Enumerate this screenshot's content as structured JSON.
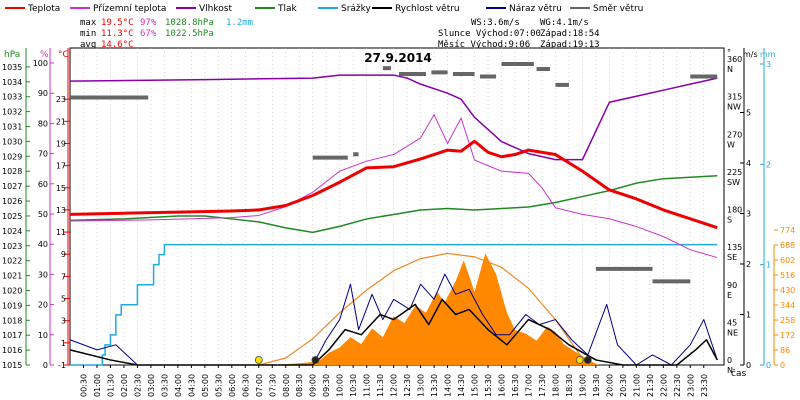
{
  "chart_data": {
    "type": "line",
    "title": "27.9.2014",
    "legend": [
      {
        "name": "Teplota",
        "color": "#ee0000"
      },
      {
        "name": "Přízemní teplota",
        "color": "#cc33cc"
      },
      {
        "name": "Vlhkost",
        "color": "#8800aa"
      },
      {
        "name": "Tlak",
        "color": "#228822"
      },
      {
        "name": "Srážky",
        "color": "#22aadd"
      },
      {
        "name": "Rychlost větru",
        "color": "#000000"
      },
      {
        "name": "Náraz větru",
        "color": "#000088"
      },
      {
        "name": "Směr větru",
        "color": "#666666"
      }
    ],
    "stats": {
      "max": {
        "label": "max",
        "temp": "19.5°C",
        "hum": "97%",
        "press": "1028.8hPa",
        "rain": "1.2mm"
      },
      "min": {
        "label": "min",
        "temp": "11.3°C",
        "hum": "67%",
        "press": "1022.5hPa"
      },
      "avg": {
        "label": "avg",
        "temp": "14.6°C"
      }
    },
    "info": {
      "ws": "WS:3.6m/s",
      "wg": "WG:4.1m/s",
      "sun": "Slunce Východ:07:00",
      "sun_set": "Západ:18:54",
      "moon": "Měsíc  Východ:9:06",
      "moon_set": "Západ:19:13"
    },
    "axes": {
      "hpa": {
        "label": "hPa",
        "color": "#228822",
        "range": [
          1015,
          1036
        ],
        "ticks": [
          1015,
          1016,
          1017,
          1018,
          1019,
          1020,
          1021,
          1022,
          1023,
          1024,
          1025,
          1026,
          1027,
          1028,
          1029,
          1030,
          1031,
          1032,
          1033,
          1034,
          1035
        ]
      },
      "pct": {
        "label": "%",
        "color": "#cc33cc",
        "range": [
          0,
          100
        ],
        "ticks": [
          0,
          10,
          20,
          30,
          40,
          50,
          60,
          70,
          80,
          90,
          100
        ]
      },
      "temp": {
        "label": "°C",
        "color": "#ee0000",
        "range": [
          -1,
          25
        ],
        "ticks": [
          -1,
          1,
          3,
          5,
          7,
          9,
          11,
          13,
          15,
          17,
          19,
          21,
          23
        ]
      },
      "dir": {
        "label": "°",
        "range": [
          0,
          360
        ],
        "ticks": [
          {
            "deg": 0,
            "n": "0",
            "c": "N"
          },
          {
            "deg": 45,
            "n": "45",
            "c": "NE"
          },
          {
            "deg": 90,
            "n": "90",
            "c": "E"
          },
          {
            "deg": 135,
            "n": "135",
            "c": "SE"
          },
          {
            "deg": 180,
            "n": "180",
            "c": "S"
          },
          {
            "deg": 225,
            "n": "225",
            "c": "SW"
          },
          {
            "deg": 270,
            "n": "270",
            "c": "W"
          },
          {
            "deg": 315,
            "n": "315",
            "c": "NW"
          },
          {
            "deg": 360,
            "n": "360",
            "c": "N"
          }
        ]
      },
      "ms": {
        "label": "m/s",
        "range": [
          0,
          3
        ],
        "ticks": [
          0,
          1,
          2,
          3,
          4,
          5
        ]
      },
      "mm": {
        "label": "mm",
        "color": "#22aadd",
        "range": [
          0,
          3
        ],
        "ticks": [
          0,
          1,
          2,
          3
        ]
      },
      "wm2": {
        "color": "#ff8800",
        "range": [
          0,
          860
        ],
        "ticks": [
          0,
          86,
          172,
          258,
          344,
          430,
          516,
          602,
          688,
          774
        ]
      },
      "time": {
        "label": "čas",
        "ticks": [
          "00:30",
          "01:00",
          "01:30",
          "02:00",
          "02:30",
          "03:00",
          "03:30",
          "04:00",
          "04:30",
          "05:00",
          "05:30",
          "06:00",
          "06:30",
          "07:00",
          "07:30",
          "08:00",
          "08:30",
          "09:00",
          "09:30",
          "10:00",
          "10:30",
          "11:00",
          "11:30",
          "12:00",
          "12:30",
          "13:00",
          "13:30",
          "14:00",
          "14:30",
          "15:00",
          "15:30",
          "16:00",
          "16:30",
          "17:00",
          "17:30",
          "18:00",
          "18:30",
          "19:00",
          "19:30",
          "20:00",
          "20:30",
          "21:00",
          "21:30",
          "22:00",
          "22:30",
          "23:00",
          "23:30"
        ]
      }
    },
    "series": {
      "temperature": {
        "unit": "°C",
        "points": [
          [
            0,
            12.6
          ],
          [
            2,
            12.7
          ],
          [
            4,
            12.8
          ],
          [
            6,
            12.9
          ],
          [
            7,
            13.0
          ],
          [
            8,
            13.4
          ],
          [
            9,
            14.3
          ],
          [
            10,
            15.5
          ],
          [
            11,
            16.8
          ],
          [
            12,
            16.9
          ],
          [
            13,
            17.6
          ],
          [
            13.5,
            18.0
          ],
          [
            14,
            18.4
          ],
          [
            14.5,
            18.3
          ],
          [
            15,
            19.2
          ],
          [
            15.5,
            18.2
          ],
          [
            16,
            17.8
          ],
          [
            16.5,
            18.0
          ],
          [
            17,
            18.4
          ],
          [
            18,
            18.0
          ],
          [
            19,
            16.5
          ],
          [
            20,
            14.8
          ],
          [
            21,
            14.0
          ],
          [
            22,
            13.0
          ],
          [
            23,
            12.2
          ],
          [
            24,
            11.4
          ]
        ]
      },
      "ground_temp": {
        "unit": "°C",
        "points": [
          [
            0,
            12.0
          ],
          [
            3,
            12.1
          ],
          [
            6,
            12.3
          ],
          [
            7,
            12.5
          ],
          [
            8,
            13.3
          ],
          [
            9,
            14.6
          ],
          [
            10,
            16.5
          ],
          [
            11,
            17.4
          ],
          [
            12,
            18.0
          ],
          [
            13,
            19.5
          ],
          [
            13.5,
            21.6
          ],
          [
            14,
            19.0
          ],
          [
            14.5,
            21.3
          ],
          [
            15,
            17.5
          ],
          [
            15.5,
            17.0
          ],
          [
            16,
            16.5
          ],
          [
            17,
            16.3
          ],
          [
            17.5,
            15.0
          ],
          [
            18,
            13.2
          ],
          [
            19,
            12.6
          ],
          [
            20,
            12.2
          ],
          [
            21,
            11.5
          ],
          [
            22,
            10.6
          ],
          [
            23,
            9.4
          ],
          [
            24,
            8.7
          ]
        ]
      },
      "humidity": {
        "unit": "%",
        "points": [
          [
            0,
            94
          ],
          [
            5,
            94.5
          ],
          [
            9,
            95
          ],
          [
            10,
            96
          ],
          [
            12,
            96
          ],
          [
            12.5,
            95
          ],
          [
            13,
            93
          ],
          [
            14,
            90
          ],
          [
            14.5,
            88
          ],
          [
            15,
            82
          ],
          [
            15.5,
            78
          ],
          [
            16,
            74
          ],
          [
            17,
            70
          ],
          [
            18,
            68
          ],
          [
            19,
            68
          ],
          [
            20,
            87
          ],
          [
            21,
            89
          ],
          [
            22,
            91
          ],
          [
            23,
            93
          ],
          [
            24,
            95
          ]
        ]
      },
      "pressure": {
        "unit": "hPa",
        "points": [
          [
            0,
            1024.7
          ],
          [
            2,
            1024.8
          ],
          [
            4,
            1025.0
          ],
          [
            5,
            1025.0
          ],
          [
            6,
            1024.8
          ],
          [
            7,
            1024.6
          ],
          [
            8,
            1024.2
          ],
          [
            9,
            1023.9
          ],
          [
            10,
            1024.3
          ],
          [
            11,
            1024.8
          ],
          [
            12,
            1025.1
          ],
          [
            13,
            1025.4
          ],
          [
            14,
            1025.5
          ],
          [
            15,
            1025.4
          ],
          [
            16,
            1025.5
          ],
          [
            17,
            1025.6
          ],
          [
            18,
            1025.9
          ],
          [
            19,
            1026.3
          ],
          [
            20,
            1026.7
          ],
          [
            21,
            1027.2
          ],
          [
            22,
            1027.5
          ],
          [
            23,
            1027.6
          ],
          [
            24,
            1027.7
          ]
        ]
      },
      "rain": {
        "unit": "mm",
        "points": [
          [
            0,
            0
          ],
          [
            1.0,
            0
          ],
          [
            1.2,
            0.1
          ],
          [
            1.3,
            0.2
          ],
          [
            1.5,
            0.3
          ],
          [
            1.7,
            0.5
          ],
          [
            1.9,
            0.6
          ],
          [
            2.2,
            0.6
          ],
          [
            2.5,
            0.8
          ],
          [
            2.8,
            0.8
          ],
          [
            3.1,
            1.0
          ],
          [
            3.3,
            1.1
          ],
          [
            3.5,
            1.2
          ],
          [
            24,
            1.2
          ]
        ]
      },
      "wind_speed": {
        "unit": "m/s",
        "points": [
          [
            0,
            0.3
          ],
          [
            1.5,
            0.1
          ],
          [
            2.5,
            0
          ],
          [
            9,
            0
          ],
          [
            9.6,
            0.3
          ],
          [
            10.2,
            0.7
          ],
          [
            10.8,
            0.6
          ],
          [
            11.5,
            1.0
          ],
          [
            12,
            0.9
          ],
          [
            12.8,
            1.2
          ],
          [
            13.3,
            0.8
          ],
          [
            13.8,
            1.3
          ],
          [
            14.3,
            1.0
          ],
          [
            14.8,
            1.1
          ],
          [
            15.5,
            0.7
          ],
          [
            16.2,
            0.4
          ],
          [
            17,
            0.9
          ],
          [
            17.8,
            0.7
          ],
          [
            18.5,
            0.4
          ],
          [
            19.5,
            0.1
          ],
          [
            20.5,
            0
          ],
          [
            22.5,
            0
          ],
          [
            23.2,
            0.3
          ],
          [
            23.6,
            0.5
          ],
          [
            24,
            0.1
          ]
        ]
      },
      "wind_gust": {
        "unit": "m/s",
        "points": [
          [
            0,
            0.5
          ],
          [
            1.0,
            0.3
          ],
          [
            1.7,
            0.4
          ],
          [
            2.5,
            0
          ],
          [
            9,
            0
          ],
          [
            9.5,
            0.5
          ],
          [
            10,
            0.9
          ],
          [
            10.4,
            1.6
          ],
          [
            10.7,
            0.7
          ],
          [
            11.2,
            1.4
          ],
          [
            11.6,
            0.9
          ],
          [
            12,
            1.3
          ],
          [
            12.6,
            1.1
          ],
          [
            13,
            1.6
          ],
          [
            13.5,
            1.3
          ],
          [
            13.9,
            1.8
          ],
          [
            14.3,
            1.4
          ],
          [
            14.8,
            1.5
          ],
          [
            15.3,
            1.0
          ],
          [
            15.8,
            0.6
          ],
          [
            16.3,
            0.6
          ],
          [
            16.9,
            1.0
          ],
          [
            17.4,
            0.8
          ],
          [
            18,
            0.9
          ],
          [
            18.6,
            0.5
          ],
          [
            19.2,
            0.2
          ],
          [
            19.9,
            1.2
          ],
          [
            20.3,
            0.4
          ],
          [
            21,
            0
          ],
          [
            21.6,
            0.2
          ],
          [
            22.3,
            0
          ],
          [
            23,
            0.4
          ],
          [
            23.5,
            0.9
          ],
          [
            24,
            0.1
          ]
        ]
      },
      "wind_dir": {
        "unit": "°",
        "segments": [
          [
            0,
            2.9,
            320
          ],
          [
            9.0,
            10.3,
            248
          ],
          [
            10.5,
            10.7,
            252
          ],
          [
            11.6,
            11.9,
            355
          ],
          [
            12.2,
            13.2,
            348
          ],
          [
            13.4,
            14.0,
            350
          ],
          [
            14.2,
            15.0,
            348
          ],
          [
            15.2,
            15.8,
            345
          ],
          [
            16.0,
            17.2,
            360
          ],
          [
            17.3,
            17.8,
            354
          ],
          [
            18.0,
            18.5,
            335
          ],
          [
            19.5,
            21.6,
            115
          ],
          [
            21.6,
            23.0,
            100
          ],
          [
            23.0,
            24.0,
            345
          ]
        ]
      },
      "solar": {
        "unit": "W/m2",
        "points": [
          [
            7.5,
            0
          ],
          [
            8.5,
            10
          ],
          [
            9.2,
            20
          ],
          [
            9.6,
            70
          ],
          [
            10,
            100
          ],
          [
            10.4,
            160
          ],
          [
            10.8,
            120
          ],
          [
            11.2,
            210
          ],
          [
            11.6,
            160
          ],
          [
            12,
            280
          ],
          [
            12.4,
            240
          ],
          [
            12.8,
            340
          ],
          [
            13.2,
            300
          ],
          [
            13.6,
            420
          ],
          [
            13.9,
            360
          ],
          [
            14.3,
            480
          ],
          [
            14.6,
            600
          ],
          [
            15.0,
            420
          ],
          [
            15.4,
            640
          ],
          [
            15.8,
            520
          ],
          [
            16.2,
            300
          ],
          [
            16.5,
            200
          ],
          [
            16.9,
            180
          ],
          [
            17.3,
            140
          ],
          [
            17.7,
            220
          ],
          [
            18,
            190
          ],
          [
            18.3,
            120
          ],
          [
            18.7,
            80
          ],
          [
            19.2,
            30
          ],
          [
            19.6,
            0
          ]
        ]
      },
      "solar_theoretical": {
        "unit": "W/m2",
        "points": [
          [
            7.0,
            0
          ],
          [
            8,
            40
          ],
          [
            9,
            150
          ],
          [
            10,
            300
          ],
          [
            11,
            430
          ],
          [
            12,
            540
          ],
          [
            13,
            610
          ],
          [
            14,
            640
          ],
          [
            15,
            620
          ],
          [
            16,
            560
          ],
          [
            17,
            440
          ],
          [
            18,
            260
          ],
          [
            18.9,
            60
          ],
          [
            19.2,
            0
          ]
        ]
      }
    },
    "markers": [
      {
        "type": "sun",
        "time": 7.0,
        "color": "#ffdd00"
      },
      {
        "type": "moon",
        "time": 9.1,
        "color": "#222222"
      },
      {
        "type": "sun",
        "time": 18.9,
        "color": "#ffdd00"
      },
      {
        "type": "moon",
        "time": 19.2,
        "color": "#222222"
      }
    ]
  }
}
